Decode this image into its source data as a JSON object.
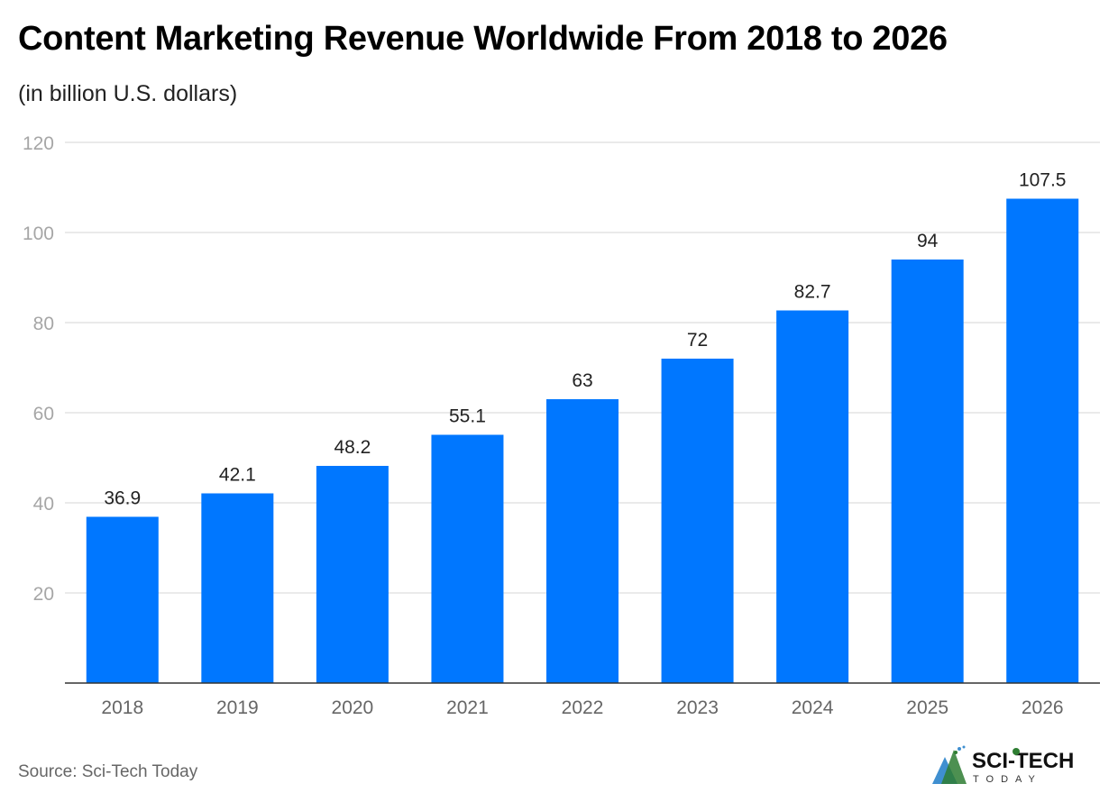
{
  "chart_data": {
    "type": "bar",
    "title": "Content Marketing Revenue Worldwide From 2018 to 2026",
    "subtitle": "(in billion U.S. dollars)",
    "categories": [
      "2018",
      "2019",
      "2020",
      "2021",
      "2022",
      "2023",
      "2024",
      "2025",
      "2026"
    ],
    "values": [
      36.9,
      42.1,
      48.2,
      55.1,
      63,
      72,
      82.7,
      94,
      107.5
    ],
    "data_labels": [
      "36.9",
      "42.1",
      "48.2",
      "55.1",
      "63",
      "72",
      "82.7",
      "94",
      "107.5"
    ],
    "xlabel": "",
    "ylabel": "",
    "ylim": [
      0,
      120
    ],
    "yticks": [
      20,
      40,
      60,
      80,
      100,
      120
    ],
    "grid": true,
    "bar_color": "#0077ff"
  },
  "source": "Source: Sci-Tech Today",
  "logo": {
    "text": "SCI-TECH",
    "subtext": "TODAY"
  }
}
